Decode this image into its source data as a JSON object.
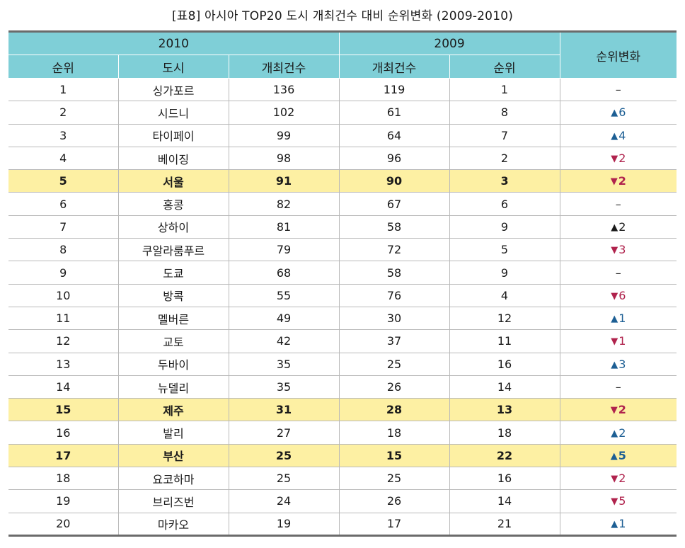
{
  "caption": "[표8] 아시아 TOP20 도시 개최건수 대비 순위변화 (2009-2010)",
  "header": {
    "year_2010": "2010",
    "year_2009": "2009",
    "change": "순위변화",
    "rank": "순위",
    "city": "도시",
    "count_2010": "개최건수",
    "count_2009": "개최건수",
    "rank_2009": "순위"
  },
  "colors": {
    "header_bg": "#7fcfd7",
    "highlight_bg": "#fdf0a3",
    "up": "#1d5f94",
    "down": "#b0234d"
  },
  "rows": [
    {
      "rank": "1",
      "city": "싱가포르",
      "c2010": "136",
      "c2009": "119",
      "r2009": "1",
      "dir": "flat",
      "change": "–",
      "highlight": false
    },
    {
      "rank": "2",
      "city": "시드니",
      "c2010": "102",
      "c2009": "61",
      "r2009": "8",
      "dir": "up",
      "change": "6",
      "highlight": false
    },
    {
      "rank": "3",
      "city": "타이페이",
      "c2010": "99",
      "c2009": "64",
      "r2009": "7",
      "dir": "up",
      "change": "4",
      "highlight": false
    },
    {
      "rank": "4",
      "city": "베이징",
      "c2010": "98",
      "c2009": "96",
      "r2009": "2",
      "dir": "down",
      "change": "2",
      "highlight": false
    },
    {
      "rank": "5",
      "city": "서울",
      "c2010": "91",
      "c2009": "90",
      "r2009": "3",
      "dir": "down",
      "change": "2",
      "highlight": true
    },
    {
      "rank": "6",
      "city": "홍콩",
      "c2010": "82",
      "c2009": "67",
      "r2009": "6",
      "dir": "flat",
      "change": "–",
      "highlight": false
    },
    {
      "rank": "7",
      "city": "상하이",
      "c2010": "81",
      "c2009": "58",
      "r2009": "9",
      "dir": "upk",
      "change": "2",
      "highlight": false
    },
    {
      "rank": "8",
      "city": "쿠알라룸푸르",
      "c2010": "79",
      "c2009": "72",
      "r2009": "5",
      "dir": "down",
      "change": "3",
      "highlight": false
    },
    {
      "rank": "9",
      "city": "도쿄",
      "c2010": "68",
      "c2009": "58",
      "r2009": "9",
      "dir": "flat",
      "change": "–",
      "highlight": false
    },
    {
      "rank": "10",
      "city": "방콕",
      "c2010": "55",
      "c2009": "76",
      "r2009": "4",
      "dir": "down",
      "change": "6",
      "highlight": false
    },
    {
      "rank": "11",
      "city": "멜버른",
      "c2010": "49",
      "c2009": "30",
      "r2009": "12",
      "dir": "up",
      "change": "1",
      "highlight": false
    },
    {
      "rank": "12",
      "city": "교토",
      "c2010": "42",
      "c2009": "37",
      "r2009": "11",
      "dir": "down",
      "change": "1",
      "highlight": false
    },
    {
      "rank": "13",
      "city": "두바이",
      "c2010": "35",
      "c2009": "25",
      "r2009": "16",
      "dir": "up",
      "change": "3",
      "highlight": false
    },
    {
      "rank": "14",
      "city": "뉴델리",
      "c2010": "35",
      "c2009": "26",
      "r2009": "14",
      "dir": "flat",
      "change": "–",
      "highlight": false
    },
    {
      "rank": "15",
      "city": "제주",
      "c2010": "31",
      "c2009": "28",
      "r2009": "13",
      "dir": "down",
      "change": "2",
      "highlight": true
    },
    {
      "rank": "16",
      "city": "발리",
      "c2010": "27",
      "c2009": "18",
      "r2009": "18",
      "dir": "up",
      "change": "2",
      "highlight": false
    },
    {
      "rank": "17",
      "city": "부산",
      "c2010": "25",
      "c2009": "15",
      "r2009": "22",
      "dir": "up",
      "change": "5",
      "highlight": true
    },
    {
      "rank": "18",
      "city": "요코하마",
      "c2010": "25",
      "c2009": "25",
      "r2009": "16",
      "dir": "down",
      "change": "2",
      "highlight": false
    },
    {
      "rank": "19",
      "city": "브리즈번",
      "c2010": "24",
      "c2009": "26",
      "r2009": "14",
      "dir": "down",
      "change": "5",
      "highlight": false
    },
    {
      "rank": "20",
      "city": "마카오",
      "c2010": "19",
      "c2009": "17",
      "r2009": "21",
      "dir": "up",
      "change": "1",
      "highlight": false
    }
  ]
}
